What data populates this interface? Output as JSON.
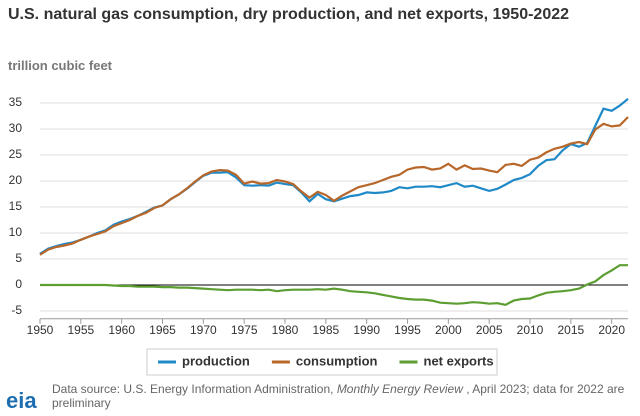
{
  "chart_data": {
    "type": "line",
    "title": "U.S. natural gas consumption, dry production, and net exports, 1950-2022",
    "subtitle": "trillion cubic feet",
    "x": [
      1950,
      1951,
      1952,
      1953,
      1954,
      1955,
      1956,
      1957,
      1958,
      1959,
      1960,
      1961,
      1962,
      1963,
      1964,
      1965,
      1966,
      1967,
      1968,
      1969,
      1970,
      1971,
      1972,
      1973,
      1974,
      1975,
      1976,
      1977,
      1978,
      1979,
      1980,
      1981,
      1982,
      1983,
      1984,
      1985,
      1986,
      1987,
      1988,
      1989,
      1990,
      1991,
      1992,
      1993,
      1994,
      1995,
      1996,
      1997,
      1998,
      1999,
      2000,
      2001,
      2002,
      2003,
      2004,
      2005,
      2006,
      2007,
      2008,
      2009,
      2010,
      2011,
      2012,
      2013,
      2014,
      2015,
      2016,
      2017,
      2018,
      2019,
      2020,
      2021,
      2022
    ],
    "series": [
      {
        "name": "production",
        "color": "#2089c8",
        "values": [
          6.0,
          7.0,
          7.5,
          7.9,
          8.2,
          8.7,
          9.3,
          10.0,
          10.5,
          11.6,
          12.2,
          12.7,
          13.3,
          14.1,
          14.9,
          15.3,
          16.5,
          17.4,
          18.5,
          19.8,
          21.0,
          21.6,
          21.6,
          21.7,
          20.7,
          19.2,
          19.1,
          19.2,
          19.1,
          19.7,
          19.4,
          19.2,
          17.8,
          16.1,
          17.5,
          16.5,
          16.1,
          16.6,
          17.1,
          17.3,
          17.8,
          17.7,
          17.8,
          18.1,
          18.8,
          18.6,
          18.9,
          18.9,
          19.0,
          18.8,
          19.2,
          19.6,
          18.9,
          19.1,
          18.6,
          18.1,
          18.5,
          19.3,
          20.2,
          20.6,
          21.3,
          22.9,
          24.0,
          24.2,
          25.9,
          27.1,
          26.6,
          27.3,
          30.6,
          33.9,
          33.5,
          34.5,
          35.8
        ]
      },
      {
        "name": "consumption",
        "color": "#b8672a",
        "values": [
          5.8,
          6.8,
          7.3,
          7.6,
          8.0,
          8.7,
          9.3,
          9.8,
          10.3,
          11.3,
          11.9,
          12.5,
          13.3,
          13.9,
          14.8,
          15.3,
          16.5,
          17.4,
          18.6,
          19.9,
          21.1,
          21.8,
          22.1,
          22.0,
          21.2,
          19.5,
          19.9,
          19.5,
          19.6,
          20.2,
          19.9,
          19.4,
          18.0,
          16.8,
          17.9,
          17.3,
          16.2,
          17.2,
          18.0,
          18.8,
          19.2,
          19.6,
          20.2,
          20.8,
          21.2,
          22.2,
          22.6,
          22.7,
          22.2,
          22.4,
          23.3,
          22.2,
          23.0,
          22.3,
          22.4,
          22.0,
          21.7,
          23.1,
          23.3,
          22.9,
          24.1,
          24.5,
          25.5,
          26.2,
          26.6,
          27.2,
          27.5,
          27.1,
          29.9,
          31.0,
          30.5,
          30.7,
          32.3
        ]
      },
      {
        "name": "net exports",
        "color": "#5c9e31",
        "values": [
          0.0,
          0.0,
          0.0,
          0.0,
          0.0,
          0.0,
          0.0,
          0.0,
          0.0,
          -0.1,
          -0.2,
          -0.2,
          -0.3,
          -0.3,
          -0.3,
          -0.4,
          -0.4,
          -0.5,
          -0.5,
          -0.6,
          -0.7,
          -0.8,
          -0.9,
          -1.0,
          -0.9,
          -0.9,
          -0.9,
          -1.0,
          -0.9,
          -1.2,
          -1.0,
          -0.9,
          -0.9,
          -0.9,
          -0.8,
          -0.9,
          -0.7,
          -0.9,
          -1.2,
          -1.3,
          -1.4,
          -1.6,
          -1.9,
          -2.2,
          -2.5,
          -2.7,
          -2.8,
          -2.8,
          -3.0,
          -3.4,
          -3.5,
          -3.6,
          -3.5,
          -3.3,
          -3.4,
          -3.6,
          -3.5,
          -3.8,
          -3.0,
          -2.7,
          -2.6,
          -2.0,
          -1.5,
          -1.3,
          -1.2,
          -1.0,
          -0.7,
          0.1,
          0.7,
          1.9,
          2.8,
          3.8,
          3.8
        ]
      }
    ],
    "xlim": [
      1950,
      2022
    ],
    "xticks": [
      1950,
      1955,
      1960,
      1965,
      1970,
      1975,
      1980,
      1985,
      1990,
      1995,
      2000,
      2005,
      2010,
      2015,
      2020
    ],
    "ylim": [
      -6.5,
      37
    ],
    "yticks": [
      -5,
      0,
      5,
      10,
      15,
      20,
      25,
      30,
      35
    ],
    "grid": true,
    "legend": "bottom",
    "source": {
      "prefix": "Data source: U.S. Energy Information Administration,",
      "italic": "Monthly Energy Review",
      "suffix": ", April 2023; data for 2022 are preliminary"
    },
    "logo": "eia"
  }
}
